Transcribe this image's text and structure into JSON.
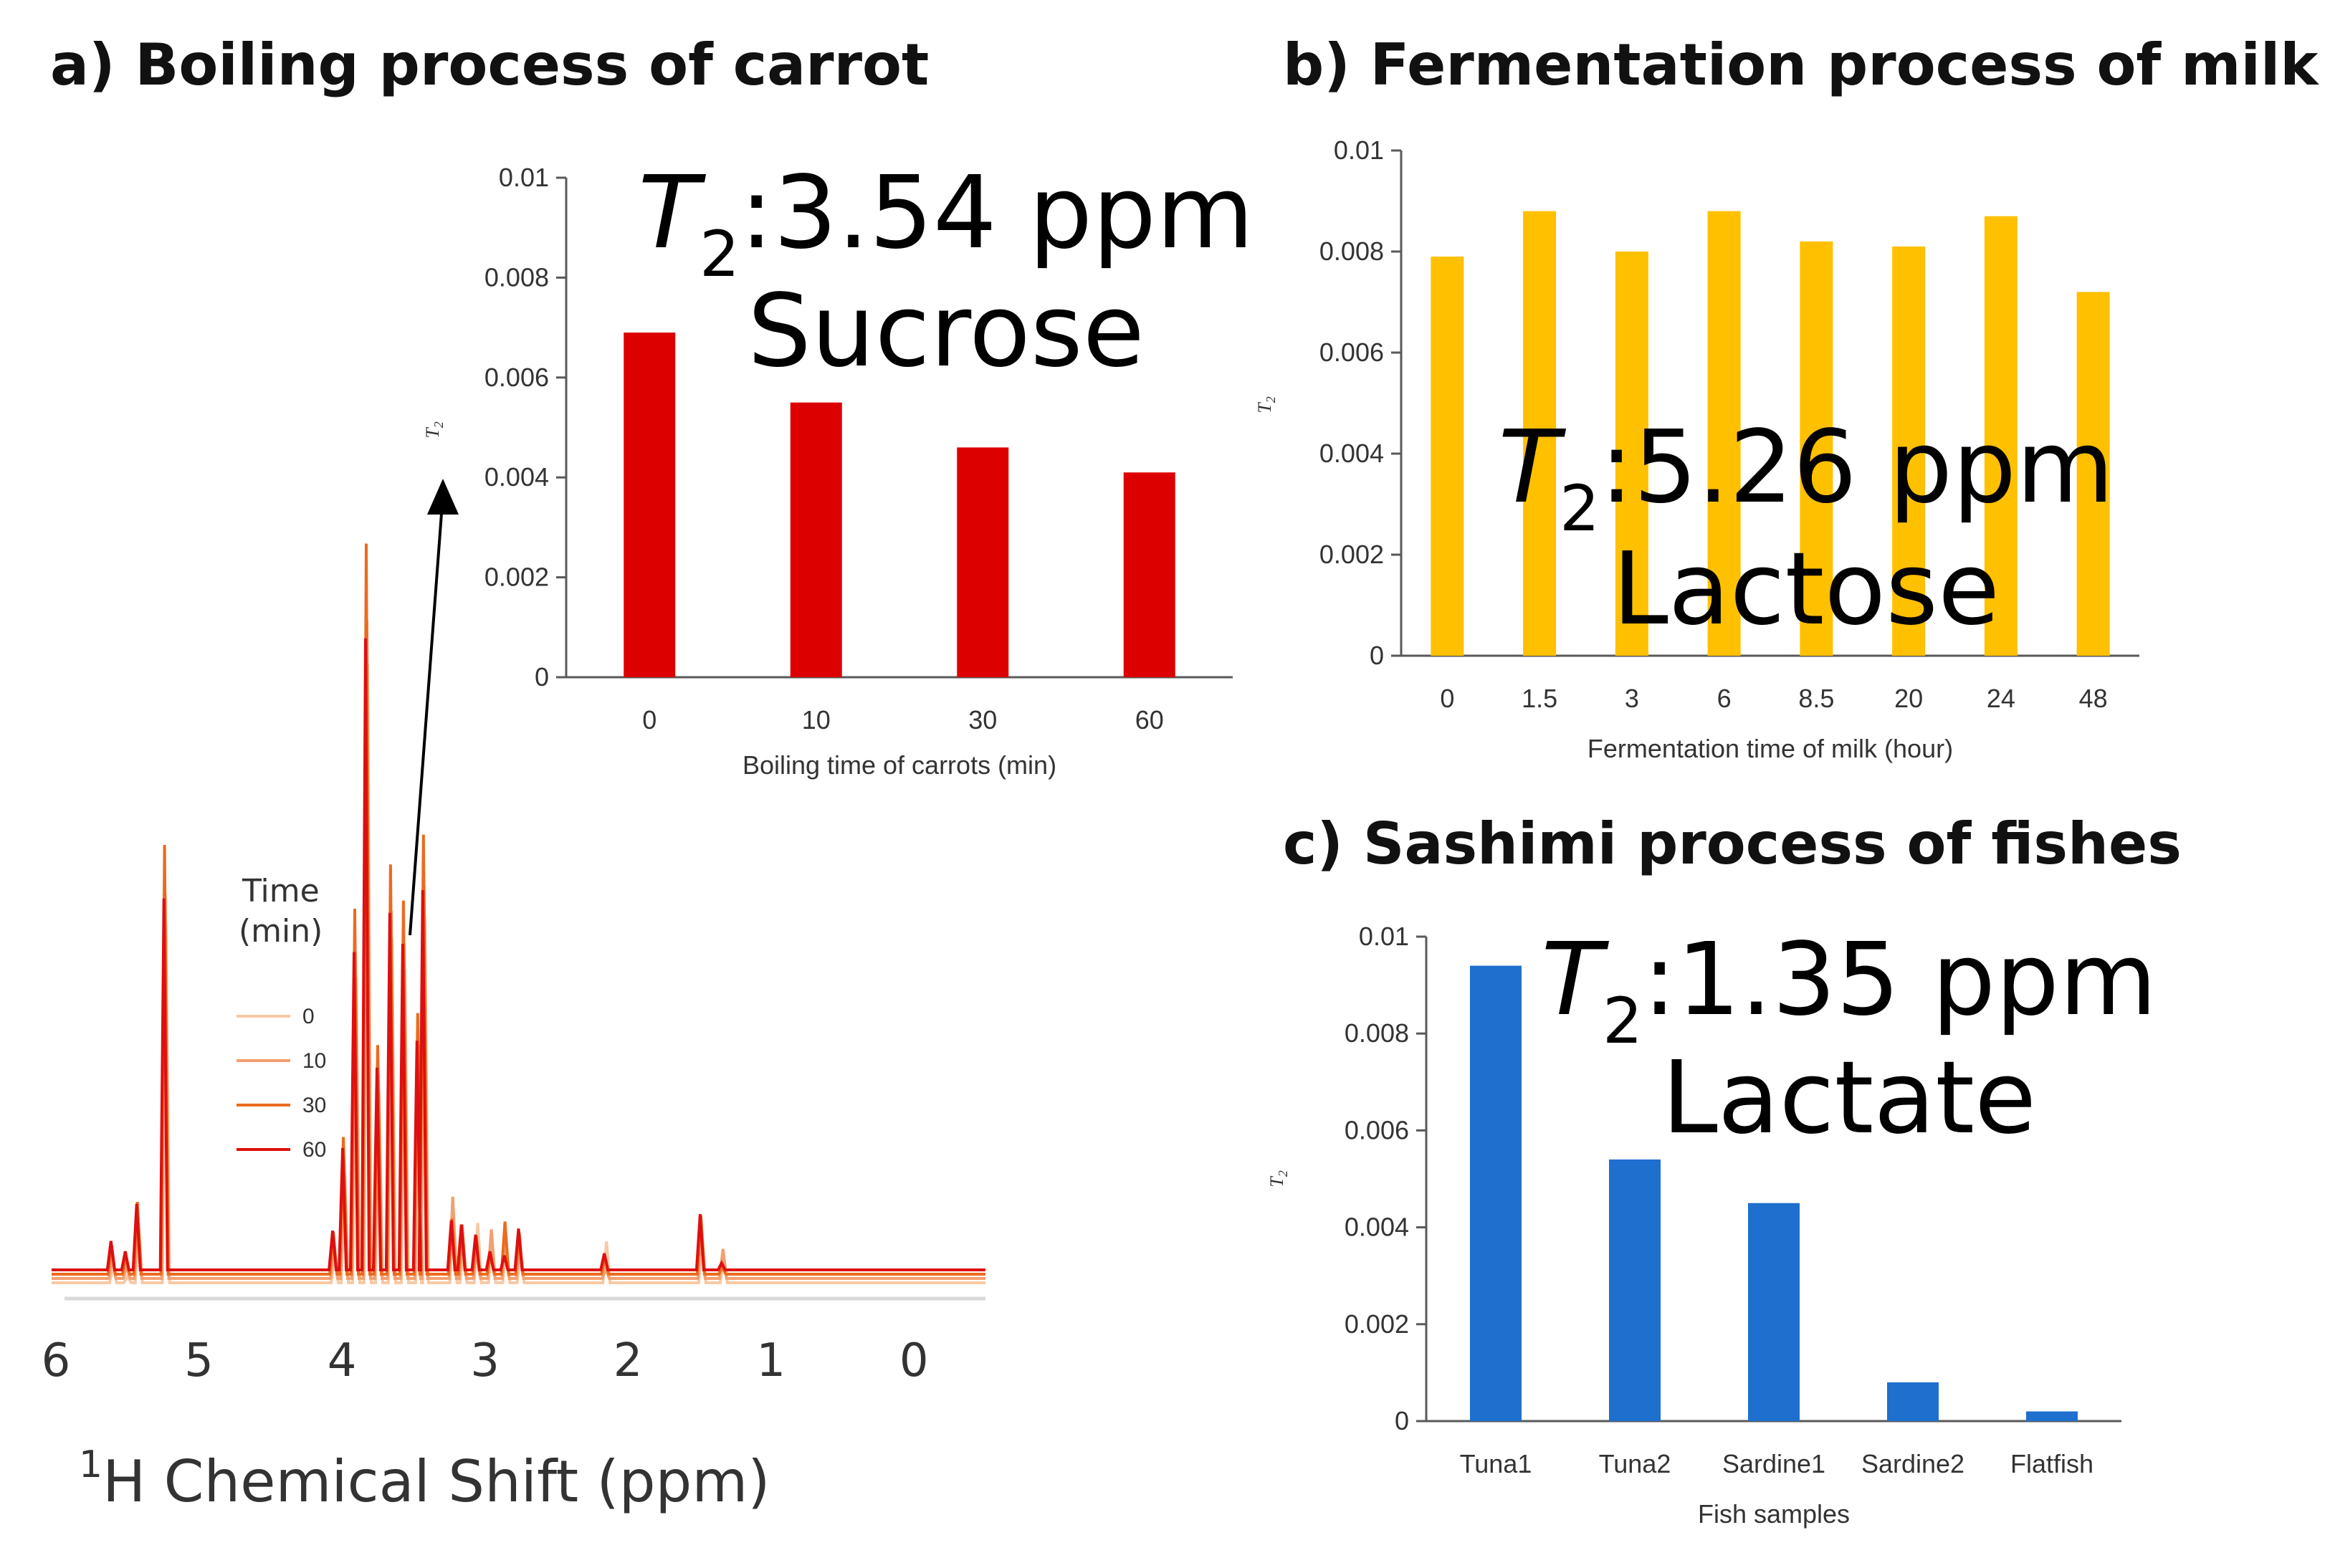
{
  "chart_data": [
    {
      "id": "a",
      "type": "bar",
      "panel_title": "a) Boiling process of carrot",
      "title_lines": [
        "3.54 ppm",
        "Sucrose"
      ],
      "title_symbol": "T",
      "title_subscript": "2",
      "title_sep": ":",
      "xlabel": "Boiling time of carrots (min)",
      "ylabel": "T2",
      "categories": [
        "0",
        "10",
        "30",
        "60"
      ],
      "values": [
        0.0069,
        0.0055,
        0.0046,
        0.0041
      ],
      "ylim": [
        0,
        0.01
      ],
      "yticks": [
        "0",
        "0.002",
        "0.004",
        "0.006",
        "0.008",
        "0.01"
      ],
      "color": "#dd0000",
      "legend": "none",
      "grid": false
    },
    {
      "id": "b",
      "type": "bar",
      "panel_title": "b) Fermentation process of milk",
      "title_lines": [
        "5.26 ppm",
        "Lactose"
      ],
      "title_symbol": "T",
      "title_subscript": "2",
      "title_sep": ":",
      "xlabel": "Fermentation time of milk (hour)",
      "ylabel": "T2",
      "categories": [
        "0",
        "1.5",
        "3",
        "6",
        "8.5",
        "20",
        "24",
        "48"
      ],
      "values": [
        0.0079,
        0.0088,
        0.008,
        0.0088,
        0.0082,
        0.0081,
        0.0087,
        0.0072
      ],
      "ylim": [
        0,
        0.01
      ],
      "yticks": [
        "0",
        "0.002",
        "0.004",
        "0.006",
        "0.008",
        "0.01"
      ],
      "color": "#ffc000",
      "legend": "none",
      "grid": false
    },
    {
      "id": "c",
      "type": "bar",
      "panel_title": "c) Sashimi process of fishes",
      "title_lines": [
        "1.35 ppm",
        "Lactate"
      ],
      "title_symbol": "T",
      "title_subscript": "2",
      "title_sep": ":",
      "xlabel": "Fish samples",
      "ylabel": "T2",
      "categories": [
        "Tuna1",
        "Tuna2",
        "Sardine1",
        "Sardine2",
        "Flatfish"
      ],
      "values": [
        0.0094,
        0.0054,
        0.0045,
        0.0008,
        0.0002
      ],
      "ylim": [
        0,
        0.01
      ],
      "yticks": [
        "0",
        "0.002",
        "0.004",
        "0.006",
        "0.008",
        "0.01"
      ],
      "color": "#1f6fcf",
      "legend": "none",
      "grid": false
    },
    {
      "id": "nmr",
      "type": "line",
      "xlabel_prefix": "1",
      "xlabel": "H Chemical Shift (ppm)",
      "xlim": [
        6,
        -0.5
      ],
      "xticks": [
        "6",
        "5",
        "4",
        "3",
        "2",
        "1",
        "0"
      ],
      "legend_title": [
        "Time",
        "(min)"
      ],
      "legend_position": "center-left",
      "series": [
        {
          "name": "0",
          "color": "#f8c8a4",
          "offset": 0.0,
          "scale": 0.9
        },
        {
          "name": "10",
          "color": "#f3a070",
          "offset": 0.006,
          "scale": 0.95
        },
        {
          "name": "30",
          "color": "#ec6a1e",
          "offset": 0.012,
          "scale": 1.05
        },
        {
          "name": "60",
          "color": "#dd1010",
          "offset": 0.018,
          "scale": 0.9
        }
      ],
      "peaks": [
        {
          "ppm": 5.6,
          "h": 0.04
        },
        {
          "ppm": 5.5,
          "h": 0.03
        },
        {
          "ppm": 5.42,
          "h": 0.1
        },
        {
          "ppm": 5.23,
          "h": 0.6
        },
        {
          "ppm": 4.05,
          "h": 0.07
        },
        {
          "ppm": 3.98,
          "h": 0.19
        },
        {
          "ppm": 3.9,
          "h": 0.5
        },
        {
          "ppm": 3.82,
          "h": 1.0
        },
        {
          "ppm": 3.74,
          "h": 0.3
        },
        {
          "ppm": 3.65,
          "h": 0.55
        },
        {
          "ppm": 3.56,
          "h": 0.5
        },
        {
          "ppm": 3.46,
          "h": 0.35
        },
        {
          "ppm": 3.42,
          "h": 0.62
        },
        {
          "ppm": 3.22,
          "h": 0.1
        },
        {
          "ppm": 3.15,
          "h": 0.08
        },
        {
          "ppm": 3.05,
          "h": 0.07
        },
        {
          "ppm": 2.95,
          "h": 0.05
        },
        {
          "ppm": 2.85,
          "h": 0.05
        },
        {
          "ppm": 2.75,
          "h": 0.04
        },
        {
          "ppm": 2.15,
          "h": 0.04
        },
        {
          "ppm": 1.48,
          "h": 0.07
        },
        {
          "ppm": 1.33,
          "h": 0.02
        }
      ]
    }
  ]
}
